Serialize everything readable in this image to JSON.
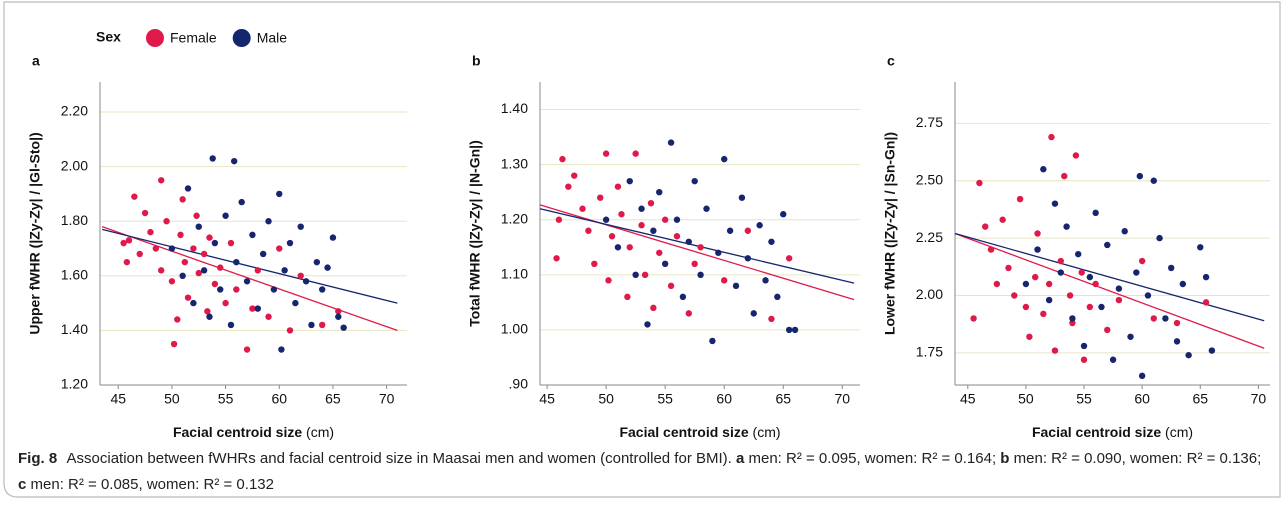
{
  "chart_data": [
    {
      "type": "scatter",
      "panel": "a",
      "legend_title": "Sex",
      "y_label": "Upper fWHR (|Zy-Zy| / |Gl-Sto|)",
      "x_label": "Facial centroid size",
      "x_unit": "(cm)",
      "xlim": [
        43.3,
        71.9
      ],
      "xticks": [
        45,
        50,
        55,
        60,
        65,
        70
      ],
      "ylim": [
        1.2,
        2.31
      ],
      "yticks": [
        {
          "value": 1.2,
          "label": "1.20"
        },
        {
          "value": 1.4,
          "label": "1.40"
        },
        {
          "value": 1.6,
          "label": "1.60"
        },
        {
          "value": 1.8,
          "label": "1.80"
        },
        {
          "value": 2.0,
          "label": "2.00"
        },
        {
          "value": 2.2,
          "label": "2.20"
        }
      ],
      "grid": true,
      "series": [
        {
          "name": "Female",
          "color": "#e0194b",
          "x": [
            45.5,
            45.8,
            46,
            46.5,
            47,
            47.5,
            48,
            48.5,
            49,
            49,
            49.5,
            50,
            50.2,
            50.5,
            50.8,
            51,
            51.2,
            51.5,
            52,
            52.3,
            52.5,
            53,
            53.3,
            53.5,
            54,
            54.5,
            55,
            55.5,
            56,
            57,
            57.5,
            58,
            59,
            60,
            61,
            62,
            64,
            65.5
          ],
          "values": [
            1.72,
            1.65,
            1.73,
            1.89,
            1.68,
            1.83,
            1.76,
            1.7,
            1.95,
            1.62,
            1.8,
            1.58,
            1.35,
            1.44,
            1.75,
            1.88,
            1.65,
            1.52,
            1.7,
            1.82,
            1.61,
            1.68,
            1.47,
            1.74,
            1.57,
            1.63,
            1.5,
            1.72,
            1.55,
            1.33,
            1.48,
            1.62,
            1.45,
            1.7,
            1.4,
            1.6,
            1.42,
            1.47
          ],
          "fit": {
            "x": [
              43.5,
              71
            ],
            "y": [
              1.78,
              1.4
            ]
          }
        },
        {
          "name": "Male",
          "color": "#15256e",
          "x": [
            50,
            51,
            51.5,
            52,
            52.5,
            53,
            53.5,
            53.8,
            54,
            54.5,
            55,
            55.5,
            55.8,
            56,
            56.5,
            57,
            57.5,
            58,
            58.5,
            59,
            59.5,
            60,
            60.2,
            60.5,
            61,
            61.5,
            62,
            62.5,
            63,
            63.5,
            64,
            65,
            65.5,
            66,
            64.5
          ],
          "values": [
            1.7,
            1.6,
            1.92,
            1.5,
            1.78,
            1.62,
            1.45,
            2.03,
            1.72,
            1.55,
            1.82,
            1.42,
            2.02,
            1.65,
            1.87,
            1.58,
            1.75,
            1.48,
            1.68,
            1.8,
            1.55,
            1.9,
            1.33,
            1.62,
            1.72,
            1.5,
            1.78,
            1.58,
            1.42,
            1.65,
            1.55,
            1.74,
            1.45,
            1.41,
            1.63
          ],
          "fit": {
            "x": [
              43.5,
              71
            ],
            "y": [
              1.77,
              1.5
            ]
          }
        }
      ]
    },
    {
      "type": "scatter",
      "panel": "b",
      "y_label": "Total fWHR (|Zy-Zy| / |N-Gn|)",
      "x_label": "Facial centroid size",
      "x_unit": "(cm)",
      "xlim": [
        44.4,
        71.5
      ],
      "xticks": [
        45,
        50,
        55,
        60,
        65,
        70
      ],
      "ylim": [
        0.9,
        1.45
      ],
      "yticks": [
        {
          "value": 0.9,
          "label": ".90"
        },
        {
          "value": 1.0,
          "label": "1.00"
        },
        {
          "value": 1.1,
          "label": "1.10"
        },
        {
          "value": 1.2,
          "label": "1.20"
        },
        {
          "value": 1.3,
          "label": "1.30"
        },
        {
          "value": 1.4,
          "label": "1.40"
        }
      ],
      "grid": true,
      "series": [
        {
          "name": "Female",
          "color": "#e0194b",
          "x": [
            45.8,
            46,
            46.3,
            46.8,
            47.3,
            48,
            48.5,
            49,
            49.5,
            50,
            50.2,
            50.5,
            51,
            51.3,
            51.8,
            52,
            52.5,
            53,
            53.3,
            53.8,
            54,
            54.5,
            55,
            55.5,
            56,
            57,
            57.5,
            58,
            60,
            62,
            64,
            65.5
          ],
          "values": [
            1.13,
            1.2,
            1.31,
            1.26,
            1.28,
            1.22,
            1.18,
            1.12,
            1.24,
            1.32,
            1.09,
            1.17,
            1.26,
            1.21,
            1.06,
            1.15,
            1.32,
            1.19,
            1.1,
            1.23,
            1.04,
            1.14,
            1.2,
            1.08,
            1.17,
            1.03,
            1.12,
            1.15,
            1.09,
            1.18,
            1.02,
            1.13
          ],
          "fit": {
            "x": [
              44.4,
              71
            ],
            "y": [
              1.227,
              1.055
            ]
          }
        },
        {
          "name": "Male",
          "color": "#15256e",
          "x": [
            50,
            51,
            52,
            52.5,
            53,
            53.5,
            54,
            54.5,
            55,
            55.5,
            56,
            56.5,
            57,
            57.5,
            58,
            58.5,
            59,
            59.5,
            60,
            60.5,
            61,
            61.5,
            62,
            62.5,
            63,
            63.5,
            64,
            64.5,
            65,
            65.5,
            66
          ],
          "values": [
            1.2,
            1.15,
            1.27,
            1.1,
            1.22,
            1.01,
            1.18,
            1.25,
            1.12,
            1.34,
            1.2,
            1.06,
            1.16,
            1.27,
            1.1,
            1.22,
            0.98,
            1.14,
            1.31,
            1.18,
            1.08,
            1.24,
            1.13,
            1.03,
            1.19,
            1.09,
            1.16,
            1.06,
            1.21,
            1.0,
            1.0
          ],
          "fit": {
            "x": [
              44.4,
              71
            ],
            "y": [
              1.22,
              1.085
            ]
          }
        }
      ]
    },
    {
      "type": "scatter",
      "panel": "c",
      "y_label": "Lower fWHR (|Zy-Zy| / |Sn-Gn|)",
      "x_label": "Facial centroid size",
      "x_unit": "(cm)",
      "xlim": [
        43.9,
        71
      ],
      "xticks": [
        45,
        50,
        55,
        60,
        65,
        70
      ],
      "ylim": [
        1.61,
        2.93
      ],
      "yticks": [
        {
          "value": 1.75,
          "label": "1.75"
        },
        {
          "value": 2.0,
          "label": "2.00"
        },
        {
          "value": 2.25,
          "label": "2.25"
        },
        {
          "value": 2.5,
          "label": "2.50"
        },
        {
          "value": 2.75,
          "label": "2.75"
        }
      ],
      "grid": true,
      "series": [
        {
          "name": "Female",
          "color": "#e0194b",
          "x": [
            45.5,
            46,
            46.5,
            47,
            47.5,
            48,
            48.5,
            49,
            49.5,
            50,
            50.3,
            50.8,
            51,
            51.5,
            52,
            52.2,
            52.5,
            53,
            53.3,
            53.8,
            54,
            54.3,
            54.8,
            55,
            55.5,
            56,
            57,
            58,
            60,
            61,
            63,
            65.5
          ],
          "values": [
            1.9,
            2.49,
            2.3,
            2.2,
            2.05,
            2.33,
            2.12,
            2.0,
            2.42,
            1.95,
            1.82,
            2.08,
            2.27,
            1.92,
            2.05,
            2.69,
            1.76,
            2.15,
            2.52,
            2.0,
            1.88,
            2.61,
            2.1,
            1.72,
            1.95,
            2.05,
            1.85,
            1.98,
            2.15,
            1.9,
            1.88,
            1.97
          ],
          "fit": {
            "x": [
              43.9,
              70.5
            ],
            "y": [
              2.27,
              1.77
            ]
          }
        },
        {
          "name": "Male",
          "color": "#15256e",
          "x": [
            50,
            51,
            51.5,
            52,
            52.5,
            53,
            53.5,
            54,
            54.5,
            55,
            55.5,
            56,
            56.5,
            57,
            57.5,
            58,
            58.5,
            59,
            59.5,
            59.8,
            60,
            60.5,
            61,
            61.5,
            62,
            62.5,
            63,
            63.5,
            64,
            65,
            65.5,
            66
          ],
          "values": [
            2.05,
            2.2,
            2.55,
            1.98,
            2.4,
            2.1,
            2.3,
            1.9,
            2.18,
            1.78,
            2.08,
            2.36,
            1.95,
            2.22,
            1.72,
            2.03,
            2.28,
            1.82,
            2.1,
            2.52,
            1.65,
            2.0,
            2.5,
            2.25,
            1.9,
            2.12,
            1.8,
            2.05,
            1.74,
            2.21,
            2.08,
            1.76
          ],
          "fit": {
            "x": [
              43.9,
              70.5
            ],
            "y": [
              2.27,
              1.89
            ]
          }
        }
      ]
    }
  ],
  "caption": {
    "label": "Fig. 8",
    "text": "Association between fWHRs and facial centroid size in Maasai men and women (controlled for BMI).",
    "stats": [
      {
        "label": "a",
        "text": "men: R² = 0.095, women: R² = 0.164;"
      },
      {
        "label": "b",
        "text": "men: R² = 0.090, women: R² = 0.136;"
      },
      {
        "label": "c",
        "text": "men: R² = 0.085, women: R² = 0.132"
      }
    ]
  }
}
